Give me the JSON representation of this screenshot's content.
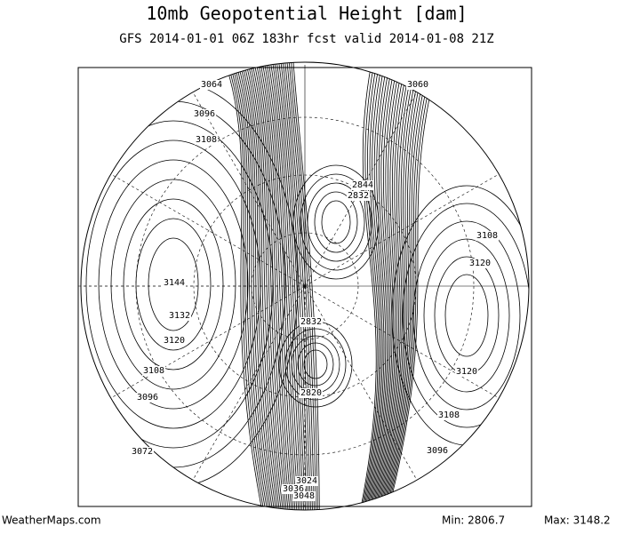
{
  "header": {
    "title": "10mb Geopotential Height [dam]",
    "subtitle": "GFS 2014-01-01 06Z 183hr fcst valid 2014-01-08 21Z"
  },
  "map": {
    "contour_labels": [
      "3064",
      "3060",
      "3096",
      "3108",
      "2844",
      "2832",
      "3108",
      "3120",
      "3144",
      "3132",
      "2832",
      "3120",
      "3108",
      "3120",
      "3096",
      "2820",
      "3108",
      "3096",
      "3072",
      "3024",
      "3036",
      "3048"
    ]
  },
  "footer": {
    "source": "WeatherMaps.com",
    "min": "Min: 2806.7",
    "max": "Max: 3148.2"
  }
}
